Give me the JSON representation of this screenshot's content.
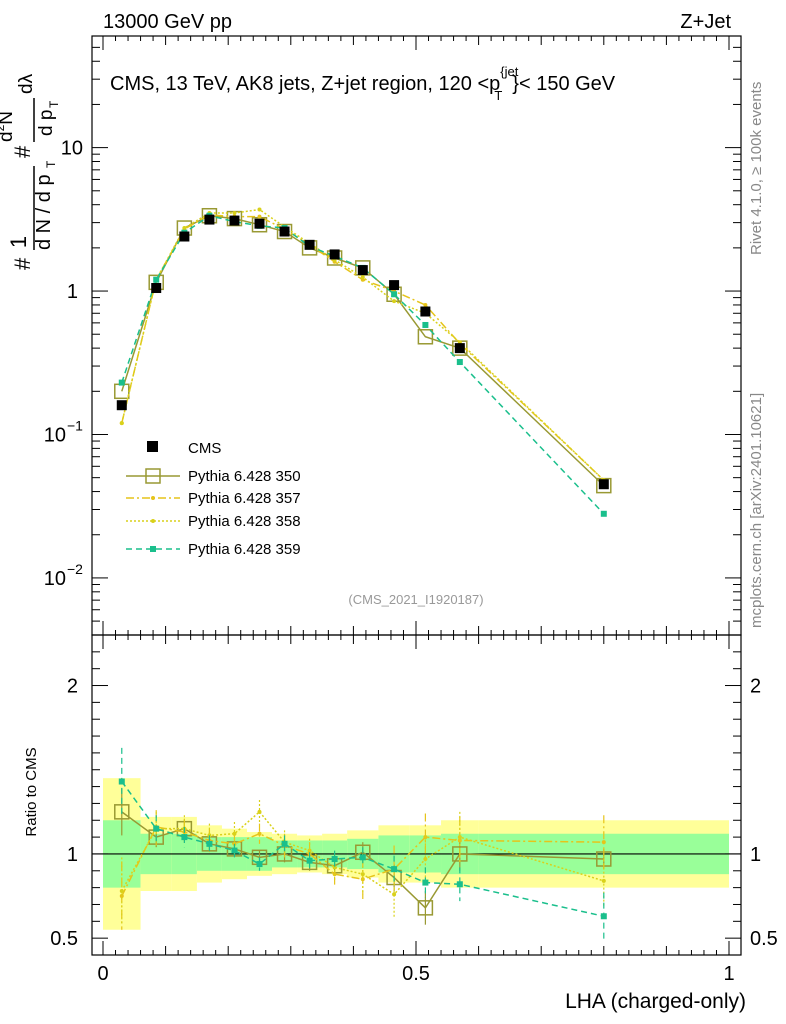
{
  "header": {
    "left": "13000 GeV pp",
    "right": "Z+Jet"
  },
  "title": {
    "main": "CMS, 13 TeV, AK8 jets, Z+jet region, 120 <p",
    "sup": "{jet",
    "sub": "T",
    "tail": "}< 150 GeV"
  },
  "y_axis_label": {
    "frac1_num": "1",
    "frac1_den": "d N / d p",
    "frac2_num": "d N",
    "frac2_den": "d p",
    "frac2_tail": "dλ",
    "hash1": "#",
    "hash2": "#",
    "sup2": "2",
    "subT1": "T",
    "subT2": "T"
  },
  "side_text": {
    "rivet": "Rivet 4.1.0, ≥ 100k events",
    "mcplots": "mcplots.cern.ch [arXiv:2401.10621]"
  },
  "analysis_id": "(CMS_2021_I1920187)",
  "ratio_label": "Ratio to CMS",
  "colors": {
    "data": "#000000",
    "p350": "#999933",
    "p357": "#e6c41a",
    "p358": "#d9d11a",
    "p359": "#1abf8c",
    "band_inner": "#99ff99",
    "band_outer": "#ffff99"
  },
  "chart_data": {
    "type": "line",
    "title": "CMS, 13 TeV, AK8 jets, Z+jet region, 120 < pT(jet) < 150 GeV",
    "xlabel": "LHA (charged-only)",
    "ylabel": "1/N dN/dpT ... dλ",
    "xlim": [
      0,
      1
    ],
    "ylim_main": [
      0.004,
      60
    ],
    "yscale_main": "log",
    "ylim_ratio": [
      0.4,
      2.3
    ],
    "x_ticks": [
      {
        "v": 0,
        "label": "0"
      },
      {
        "v": 0.5,
        "label": "0.5"
      },
      {
        "v": 1,
        "label": "1"
      }
    ],
    "y_ticks_main": [
      {
        "v": 10,
        "base": "10",
        "exp": ""
      },
      {
        "v": 1,
        "base": "1",
        "exp": ""
      },
      {
        "v": 0.1,
        "base": "10",
        "exp": "−1"
      },
      {
        "v": 0.01,
        "base": "10",
        "exp": "−2"
      }
    ],
    "y_ticks_ratio": [
      {
        "v": 2,
        "label": "2"
      },
      {
        "v": 1,
        "label": "1"
      },
      {
        "v": 0.5,
        "label": "0.5"
      }
    ],
    "bin_edges": [
      0,
      0.06,
      0.11,
      0.15,
      0.19,
      0.23,
      0.27,
      0.31,
      0.35,
      0.39,
      0.44,
      0.49,
      0.54,
      0.6,
      1.0
    ],
    "x": [
      0.03,
      0.085,
      0.13,
      0.17,
      0.21,
      0.25,
      0.29,
      0.33,
      0.37,
      0.415,
      0.465,
      0.515,
      0.57,
      0.8
    ],
    "legend": [
      "CMS",
      "Pythia 6.428 350",
      "Pythia 6.428 357",
      "Pythia 6.428 358",
      "Pythia 6.428 359"
    ],
    "data": {
      "name": "CMS",
      "values": [
        0.16,
        1.05,
        2.4,
        3.15,
        3.1,
        2.95,
        2.6,
        2.1,
        1.8,
        1.4,
        1.1,
        0.72,
        0.4,
        0.045
      ],
      "band_inner": [
        0.2,
        0.12,
        0.12,
        0.1,
        0.1,
        0.1,
        0.08,
        0.08,
        0.08,
        0.09,
        0.11,
        0.11,
        0.12,
        0.12
      ],
      "band_outer": [
        0.45,
        0.22,
        0.22,
        0.17,
        0.15,
        0.13,
        0.12,
        0.11,
        0.12,
        0.14,
        0.17,
        0.17,
        0.2,
        0.2
      ]
    },
    "series": [
      {
        "name": "Pythia 6.428 350",
        "values": [
          0.2,
          1.15,
          2.75,
          3.35,
          3.2,
          2.9,
          2.6,
          2.0,
          1.7,
          1.45,
          0.95,
          0.48,
          0.4,
          0.044
        ],
        "ratio": [
          1.25,
          1.1,
          1.15,
          1.06,
          1.03,
          0.98,
          1.0,
          0.95,
          0.93,
          1.01,
          0.86,
          0.68,
          1.0,
          0.97
        ],
        "ratio_err": [
          0.14,
          0.06,
          0.05,
          0.04,
          0.03,
          0.04,
          0.05,
          0.05,
          0.05,
          0.06,
          0.08,
          0.1,
          0.1,
          0.06
        ]
      },
      {
        "name": "Pythia 6.428 357",
        "values": [
          0.12,
          1.2,
          2.7,
          3.4,
          3.3,
          3.3,
          2.7,
          2.1,
          1.6,
          1.2,
          1.0,
          0.8,
          0.43,
          0.048
        ],
        "ratio": [
          0.75,
          1.16,
          1.13,
          1.08,
          1.06,
          1.12,
          1.05,
          1.0,
          0.88,
          0.85,
          0.91,
          1.1,
          1.08,
          1.07
        ],
        "ratio_err": [
          0.2,
          0.1,
          0.08,
          0.07,
          0.06,
          0.06,
          0.07,
          0.07,
          0.08,
          0.12,
          0.14,
          0.14,
          0.14,
          0.16
        ]
      },
      {
        "name": "Pythia 6.428 358",
        "values": [
          0.12,
          1.2,
          2.75,
          3.5,
          3.5,
          3.7,
          2.8,
          2.15,
          1.65,
          1.25,
          0.85,
          0.7,
          0.44,
          0.048
        ],
        "ratio": [
          0.78,
          1.15,
          1.15,
          1.11,
          1.12,
          1.25,
          1.07,
          1.02,
          0.92,
          0.88,
          0.76,
          0.97,
          1.1,
          0.84
        ],
        "ratio_err": [
          0.2,
          0.1,
          0.08,
          0.07,
          0.07,
          0.07,
          0.07,
          0.07,
          0.08,
          0.12,
          0.14,
          0.14,
          0.15,
          0.15
        ]
      },
      {
        "name": "Pythia 6.428 359",
        "values": [
          0.23,
          1.2,
          2.55,
          3.35,
          3.05,
          2.85,
          2.75,
          2.05,
          1.75,
          1.45,
          0.95,
          0.58,
          0.32,
          0.028
        ],
        "ratio": [
          1.43,
          1.15,
          1.1,
          1.06,
          1.02,
          0.94,
          1.06,
          0.96,
          0.97,
          0.98,
          0.91,
          0.83,
          0.82,
          0.63
        ],
        "ratio_err": [
          0.2,
          0.08,
          0.06,
          0.05,
          0.04,
          0.04,
          0.05,
          0.05,
          0.05,
          0.06,
          0.08,
          0.09,
          0.1,
          0.14
        ]
      }
    ]
  }
}
